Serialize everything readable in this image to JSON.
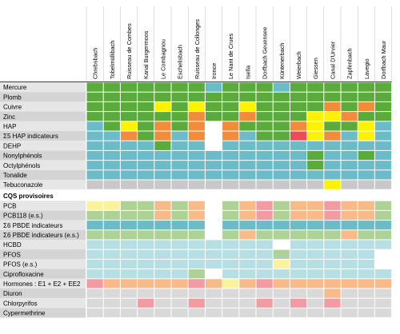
{
  "chart_data": {
    "type": "heatmap",
    "title": "",
    "columns": [
      "Chrebsbach",
      "Tobelmüllibach",
      "Ruisseau de Combes",
      "Kanal Burgermoos",
      "Le Combagnou",
      "Eschelisbach",
      "Ruisseau de Collonges",
      "Ironce",
      "Le Nant de Crues",
      "Isella",
      "Dorfbach Geuensee",
      "Küntenerbach",
      "Weierbach",
      "Giessen",
      "Canal D'Urvier",
      "Zapfenbach",
      "Lavegio",
      "Dorfbach Maur"
    ],
    "colors": {
      "G": "#5aaa3c",
      "T": "#6bbcc8",
      "Y": "#fff200",
      "O": "#f28b3a",
      "R": "#ee4b57",
      "W": "#ffffff",
      "S": "#c8c8c8",
      "LY": "#fbf39c",
      "LG": "#aed296",
      "LT": "#b5dfe3",
      "LO": "#f9ba8a",
      "LR": "#f29ba2",
      "LS": "#d9d9d9"
    },
    "section_label": "CQS provisoires",
    "rows_top": [
      {
        "label": "Mercure",
        "cells": [
          "G",
          "G",
          "G",
          "G",
          "G",
          "G",
          "G",
          "T",
          "G",
          "G",
          "G",
          "T",
          "G",
          "G",
          "G",
          "G",
          "G",
          "G"
        ]
      },
      {
        "label": "Plomb",
        "cells": [
          "G",
          "G",
          "G",
          "G",
          "G",
          "G",
          "G",
          "G",
          "G",
          "G",
          "G",
          "G",
          "G",
          "G",
          "G",
          "G",
          "G",
          "G"
        ]
      },
      {
        "label": "Cuivre",
        "cells": [
          "G",
          "G",
          "G",
          "G",
          "Y",
          "G",
          "Y",
          "G",
          "G",
          "Y",
          "G",
          "G",
          "G",
          "G",
          "O",
          "G",
          "O",
          "G"
        ]
      },
      {
        "label": "Zinc",
        "cells": [
          "G",
          "G",
          "G",
          "G",
          "G",
          "G",
          "O",
          "G",
          "G",
          "O",
          "G",
          "G",
          "G",
          "Y",
          "Y",
          "O",
          "G",
          "G"
        ]
      },
      {
        "label": "HAP",
        "cells": [
          "T",
          "G",
          "Y",
          "G",
          "O",
          "G",
          "O",
          "W",
          "O",
          "G",
          "G",
          "G",
          "O",
          "Y",
          "G",
          "G",
          "Y",
          "T"
        ]
      },
      {
        "label": "Σ5 HAP indicateurs",
        "cells": [
          "T",
          "T",
          "O",
          "G",
          "O",
          "T",
          "O",
          "W",
          "O",
          "T",
          "G",
          "G",
          "R",
          "Y",
          "O",
          "T",
          "Y",
          "T"
        ]
      },
      {
        "label": "DEHP",
        "cells": [
          "T",
          "T",
          "T",
          "T",
          "G",
          "T",
          "T",
          "W",
          "T",
          "T",
          "T",
          "T",
          "T",
          "T",
          "T",
          "T",
          "T",
          "T"
        ]
      },
      {
        "label": "Nonylphénols",
        "cells": [
          "T",
          "T",
          "T",
          "T",
          "T",
          "T",
          "T",
          "T",
          "T",
          "T",
          "T",
          "T",
          "T",
          "G",
          "T",
          "T",
          "G",
          "T"
        ]
      },
      {
        "label": "Octylphénols",
        "cells": [
          "T",
          "T",
          "T",
          "T",
          "T",
          "T",
          "T",
          "T",
          "T",
          "T",
          "T",
          "T",
          "T",
          "G",
          "T",
          "T",
          "T",
          "T"
        ]
      },
      {
        "label": "Tonalide",
        "cells": [
          "T",
          "T",
          "T",
          "T",
          "T",
          "T",
          "T",
          "T",
          "T",
          "T",
          "T",
          "T",
          "T",
          "T",
          "T",
          "T",
          "T",
          "T"
        ]
      },
      {
        "label": "Tebuconazole",
        "cells": [
          "S",
          "S",
          "S",
          "S",
          "S",
          "S",
          "S",
          "S",
          "S",
          "S",
          "S",
          "S",
          "S",
          "S",
          "Y",
          "S",
          "S",
          "S"
        ]
      }
    ],
    "rows_bottom": [
      {
        "label": "PCB",
        "cells": [
          "LY",
          "LY",
          "LG",
          "LG",
          "LO",
          "LG",
          "LO",
          "W",
          "LG",
          "LO",
          "LR",
          "LG",
          "LO",
          "LO",
          "LR",
          "LO",
          "LO",
          "LG"
        ]
      },
      {
        "label": "PCB118 (e.s.)",
        "cells": [
          "LG",
          "LG",
          "LG",
          "LG",
          "LO",
          "LG",
          "LO",
          "W",
          "LG",
          "LO",
          "LR",
          "LG",
          "LO",
          "LO",
          "LR",
          "LO",
          "LO",
          "LG"
        ]
      },
      {
        "label": "Σ6 PBDE indicateurs",
        "cells": [
          "T",
          "T",
          "T",
          "T",
          "T",
          "T",
          "T",
          "W",
          "T",
          "T",
          "T",
          "T",
          "T",
          "T",
          "T",
          "T",
          "T",
          "T"
        ]
      },
      {
        "label": "Σ6 PBDE indicateurs (e.s.)",
        "cells": [
          "LG",
          "LG",
          "LG",
          "LG",
          "LG",
          "LG",
          "LG",
          "W",
          "LG",
          "LO",
          "LG",
          "LG",
          "LG",
          "LG",
          "LG",
          "LO",
          "LG",
          "LG"
        ]
      },
      {
        "label": "HCBD",
        "cells": [
          "LT",
          "LT",
          "LT",
          "LT",
          "LT",
          "LT",
          "LT",
          "LT",
          "LT",
          "LT",
          "LT",
          "W",
          "LT",
          "LT",
          "LT",
          "LT",
          "LT",
          "LT"
        ]
      },
      {
        "label": "PFOS",
        "cells": [
          "LT",
          "LT",
          "LT",
          "LT",
          "LT",
          "LT",
          "LT",
          "LT",
          "LT",
          "LT",
          "LT",
          "LG",
          "LT",
          "LT",
          "LT",
          "LT",
          "LT",
          "W"
        ]
      },
      {
        "label": "PFOS (e.s.)",
        "cells": [
          "LT",
          "LT",
          "LT",
          "LT",
          "LT",
          "LT",
          "LT",
          "LT",
          "LT",
          "LT",
          "LT",
          "LY",
          "LT",
          "LT",
          "LT",
          "LT",
          "LT",
          "W"
        ]
      },
      {
        "label": "Ciprofloxacine",
        "cells": [
          "LT",
          "LT",
          "LT",
          "LT",
          "LT",
          "LT",
          "LG",
          "W",
          "LT",
          "LT",
          "LT",
          "LT",
          "LT",
          "LT",
          "LT",
          "LT",
          "LT",
          "LT"
        ]
      },
      {
        "label": "Hormones : E1 + E2 + EE2",
        "cells": [
          "LR",
          "LO",
          "LO",
          "LO",
          "LO",
          "LO",
          "LR",
          "LO",
          "LY",
          "LO",
          "LR",
          "LO",
          "LO",
          "LO",
          "LO",
          "LO",
          "LO",
          "LO"
        ]
      },
      {
        "label": "Diuron",
        "cells": [
          "LS",
          "LS",
          "LS",
          "LS",
          "LS",
          "LS",
          "LS",
          "LS",
          "LS",
          "LS",
          "LS",
          "LS",
          "LS",
          "LS",
          "LO",
          "LS",
          "LS",
          "LS"
        ]
      },
      {
        "label": "Chlorpyrifos",
        "cells": [
          "LS",
          "LS",
          "LS",
          "LR",
          "LS",
          "LS",
          "LR",
          "LS",
          "LS",
          "LS",
          "LR",
          "LS",
          "LR",
          "LS",
          "LR",
          "LS",
          "LS",
          "LS"
        ]
      },
      {
        "label": "Cypermethrine",
        "cells": [
          "LS",
          "LS",
          "LS",
          "LS",
          "LS",
          "LS",
          "LS",
          "LS",
          "LS",
          "LS",
          "LS",
          "LS",
          "LS",
          "LS",
          "LS",
          "LS",
          "LS",
          "LS"
        ]
      }
    ]
  }
}
